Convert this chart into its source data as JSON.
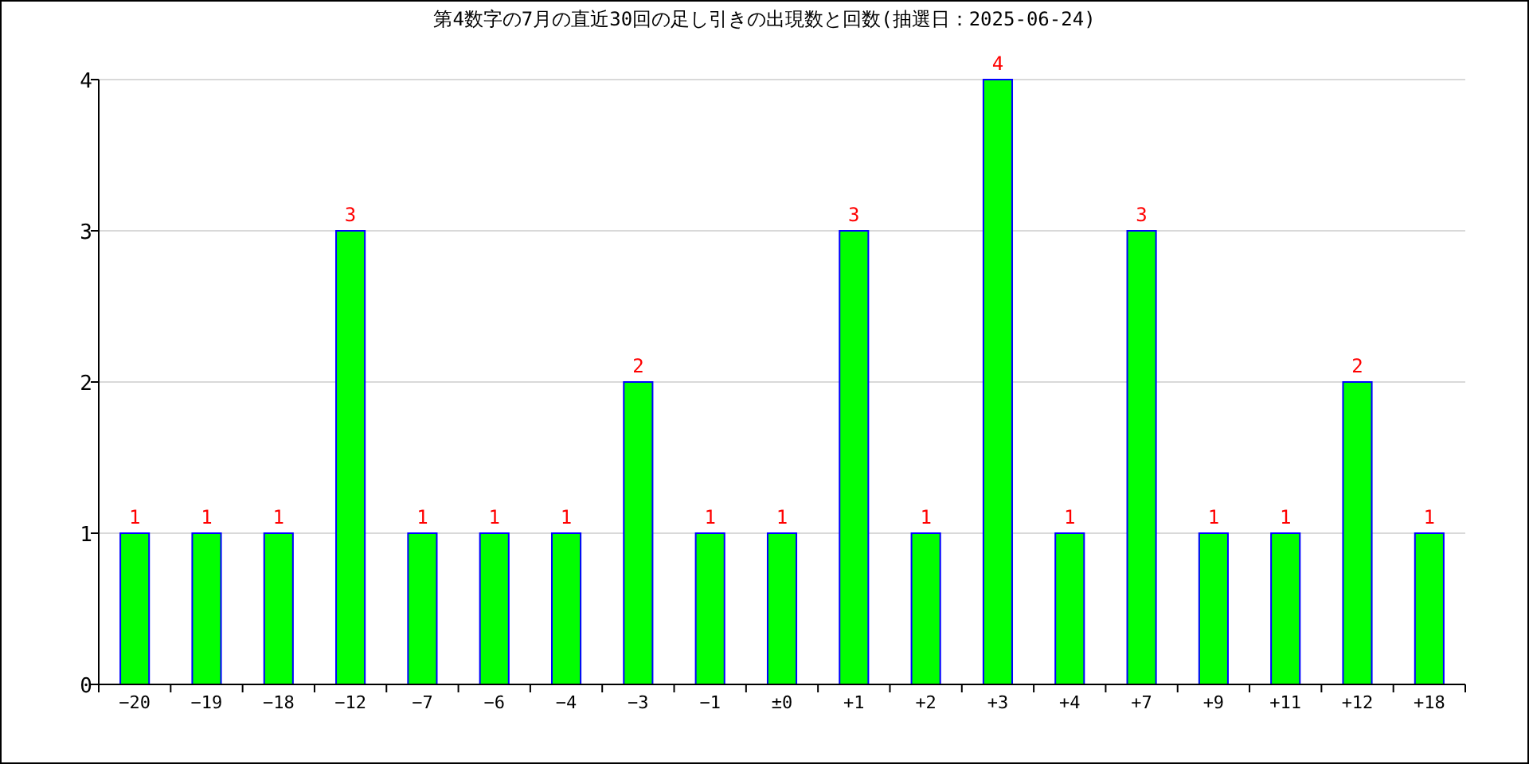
{
  "chart_data": {
    "type": "bar",
    "title": "第4数字の7月の直近30回の足し引きの出現数と回数(抽選日：2025-06-24)",
    "categories": [
      "−20",
      "−19",
      "−18",
      "−12",
      "−7",
      "−6",
      "−4",
      "−3",
      "−1",
      "±0",
      "+1",
      "+2",
      "+3",
      "+4",
      "+7",
      "+9",
      "+11",
      "+12",
      "+18"
    ],
    "values": [
      1,
      1,
      1,
      3,
      1,
      1,
      1,
      2,
      1,
      1,
      3,
      1,
      4,
      1,
      3,
      1,
      1,
      2,
      1
    ],
    "color": "#00ff00",
    "ylim": [
      0,
      4
    ],
    "yticks": [
      0,
      1,
      2,
      3,
      4
    ],
    "grid": "y",
    "data_labels": true
  }
}
